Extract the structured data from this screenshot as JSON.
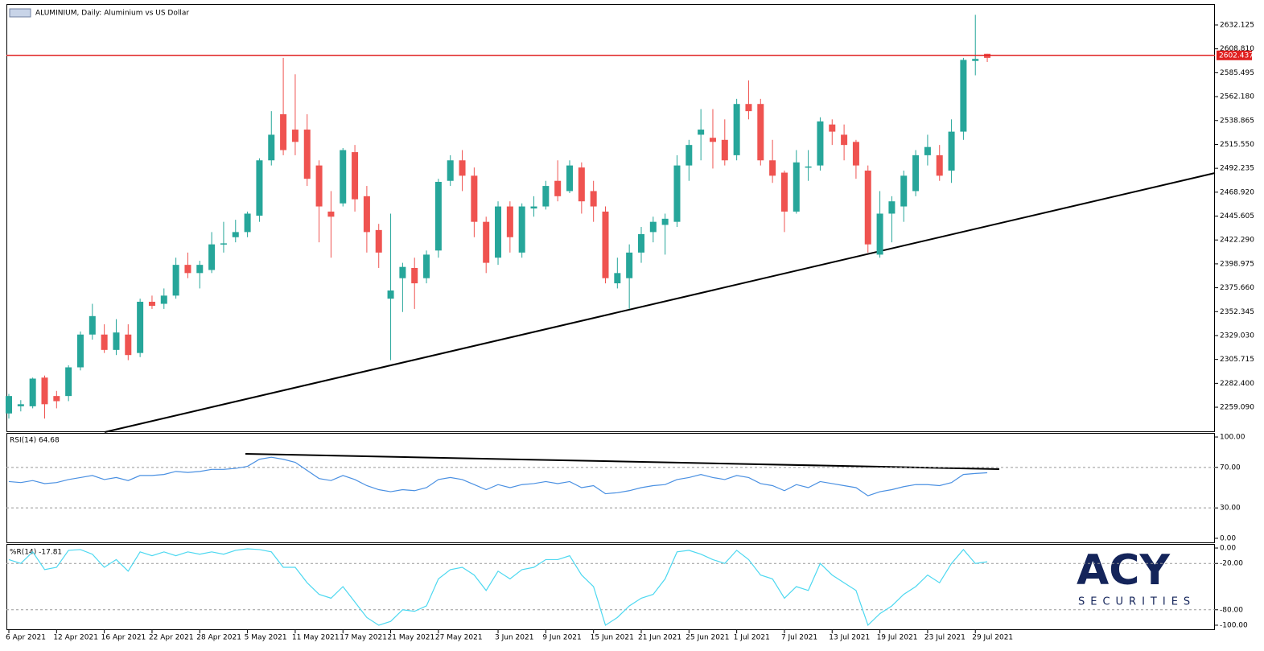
{
  "chart_data": [
    {
      "type": "candlestick",
      "title": "ALUMINIUM, Daily:  Aluminium vs US Dollar",
      "categories": [
        "6 Apr 2021",
        null,
        null,
        null,
        "12 Apr 2021",
        null,
        null,
        null,
        "16 Apr 2021",
        null,
        null,
        null,
        "22 Apr 2021",
        null,
        null,
        null,
        "28 Apr 2021",
        null,
        null,
        null,
        "5 May 2021",
        null,
        null,
        null,
        "11 May 2021",
        null,
        null,
        null,
        "17 May 2021",
        null,
        null,
        null,
        "21 May 2021",
        null,
        null,
        null,
        "27 May 2021",
        null,
        null,
        null,
        null,
        "3 Jun 2021",
        null,
        null,
        null,
        "9 Jun 2021",
        null,
        null,
        null,
        "15 Jun 2021",
        null,
        null,
        null,
        "21 Jun 2021",
        null,
        null,
        null,
        "25 Jun 2021",
        null,
        null,
        null,
        "1 Jul 2021",
        null,
        null,
        null,
        "7 Jul 2021",
        null,
        null,
        null,
        "13 Jul 2021",
        null,
        null,
        null,
        "19 Jul 2021",
        null,
        null,
        null,
        "23 Jul 2021",
        null,
        null,
        null,
        "29 Jul 2021",
        null
      ],
      "open": [
        2253,
        2260,
        2260,
        2288,
        2270,
        2270,
        2298,
        2330,
        2330,
        2315,
        2330,
        2312,
        2362,
        2360,
        2368,
        2398,
        2390,
        2393,
        2418,
        2425,
        2430,
        2446,
        2500,
        2545,
        2530,
        2530,
        2495,
        2450,
        2458,
        2508,
        2465,
        2432,
        2365,
        2385,
        2395,
        2385,
        2412,
        2480,
        2500,
        2485,
        2440,
        2405,
        2455,
        2410,
        2453,
        2455,
        2480,
        2470,
        2493,
        2470,
        2450,
        2380,
        2385,
        2410,
        2430,
        2437,
        2440,
        2495,
        2525,
        2522,
        2520,
        2505,
        2555,
        2555,
        2500,
        2488,
        2450,
        2493,
        2495,
        2535,
        2525,
        2518,
        2490,
        2408,
        2448,
        2455,
        2470,
        2505,
        2505,
        2490,
        2528,
        2597,
        2604
      ],
      "high": [
        2272,
        2266,
        2288,
        2290,
        2275,
        2300,
        2333,
        2360,
        2340,
        2345,
        2340,
        2365,
        2368,
        2375,
        2405,
        2410,
        2402,
        2430,
        2440,
        2442,
        2450,
        2502,
        2548,
        2600,
        2584,
        2545,
        2500,
        2470,
        2512,
        2515,
        2475,
        2438,
        2448,
        2400,
        2405,
        2412,
        2482,
        2505,
        2510,
        2493,
        2445,
        2460,
        2460,
        2458,
        2465,
        2480,
        2500,
        2500,
        2498,
        2480,
        2455,
        2405,
        2418,
        2435,
        2445,
        2448,
        2505,
        2520,
        2550,
        2550,
        2540,
        2560,
        2578,
        2560,
        2520,
        2490,
        2510,
        2510,
        2542,
        2540,
        2535,
        2520,
        2495,
        2470,
        2465,
        2490,
        2510,
        2525,
        2515,
        2540,
        2600,
        2642,
        2604
      ],
      "low": [
        2248,
        2255,
        2258,
        2248,
        2258,
        2265,
        2295,
        2325,
        2312,
        2310,
        2305,
        2308,
        2355,
        2355,
        2365,
        2385,
        2375,
        2390,
        2410,
        2420,
        2425,
        2440,
        2495,
        2505,
        2505,
        2475,
        2420,
        2405,
        2455,
        2450,
        2410,
        2395,
        2305,
        2352,
        2355,
        2380,
        2405,
        2475,
        2470,
        2425,
        2390,
        2398,
        2410,
        2405,
        2445,
        2452,
        2460,
        2468,
        2448,
        2440,
        2380,
        2375,
        2355,
        2400,
        2420,
        2408,
        2435,
        2480,
        2500,
        2492,
        2495,
        2500,
        2540,
        2495,
        2478,
        2430,
        2448,
        2480,
        2490,
        2515,
        2500,
        2482,
        2410,
        2405,
        2420,
        2440,
        2465,
        2495,
        2480,
        2478,
        2520,
        2583,
        2596
      ],
      "close": [
        2270,
        2262,
        2287,
        2262,
        2265,
        2298,
        2330,
        2348,
        2315,
        2332,
        2310,
        2362,
        2358,
        2368,
        2398,
        2390,
        2398,
        2418,
        2419,
        2430,
        2448,
        2500,
        2525,
        2510,
        2518,
        2482,
        2455,
        2445,
        2510,
        2462,
        2430,
        2410,
        2373,
        2396,
        2380,
        2408,
        2479,
        2500,
        2485,
        2440,
        2400,
        2455,
        2425,
        2455,
        2455,
        2475,
        2465,
        2495,
        2460,
        2455,
        2385,
        2390,
        2410,
        2428,
        2440,
        2443,
        2495,
        2515,
        2530,
        2518,
        2500,
        2555,
        2548,
        2500,
        2485,
        2450,
        2498,
        2494,
        2538,
        2528,
        2515,
        2495,
        2418,
        2448,
        2460,
        2485,
        2505,
        2513,
        2485,
        2528,
        2598,
        2599,
        2600
      ],
      "up_color": "#26a69a",
      "down_color": "#ef5350",
      "ylim": [
        2234.78,
        2652.54
      ],
      "yticks": [
        {
          "value": 2632.125,
          "label": "2632.125"
        },
        {
          "value": 2608.81,
          "label": "2608.810"
        },
        {
          "value": 2585.495,
          "label": "2585.495"
        },
        {
          "value": 2562.18,
          "label": "2562.180"
        },
        {
          "value": 2538.865,
          "label": "2538.865"
        },
        {
          "value": 2515.55,
          "label": "2515.550"
        },
        {
          "value": 2492.235,
          "label": "2492.235"
        },
        {
          "value": 2468.92,
          "label": "2468.920"
        },
        {
          "value": 2445.605,
          "label": "2445.605"
        },
        {
          "value": 2422.29,
          "label": "2422.290"
        },
        {
          "value": 2398.975,
          "label": "2398.975"
        },
        {
          "value": 2375.66,
          "label": "2375.660"
        },
        {
          "value": 2352.345,
          "label": "2352.345"
        },
        {
          "value": 2329.03,
          "label": "2329.030"
        },
        {
          "value": 2305.715,
          "label": "2305.715"
        },
        {
          "value": 2282.4,
          "label": "2282.400"
        },
        {
          "value": 2259.09,
          "label": "2259.090"
        }
      ],
      "current_price": {
        "value": 2602.437,
        "label": "2602.437"
      },
      "price_line_color": "#e02020"
    },
    {
      "type": "line",
      "title": "RSI(14) 64.68",
      "color": "#4a90e2",
      "values": [
        56,
        55,
        57,
        54,
        55,
        58,
        60,
        62,
        58,
        60,
        57,
        62,
        62,
        63,
        66,
        65,
        66,
        68,
        68,
        69,
        71,
        78,
        80,
        78,
        75,
        67,
        59,
        57,
        62,
        58,
        52,
        48,
        46,
        48,
        47,
        50,
        58,
        60,
        58,
        53,
        48,
        53,
        50,
        53,
        54,
        56,
        54,
        56,
        50,
        52,
        44,
        45,
        47,
        50,
        52,
        53,
        58,
        60,
        63,
        60,
        58,
        62,
        60,
        54,
        52,
        47,
        53,
        50,
        56,
        54,
        52,
        50,
        42,
        46,
        48,
        51,
        53,
        53,
        52,
        55,
        63,
        64,
        64.68
      ],
      "ylim": [
        -4.8,
        104
      ],
      "yticks": [
        {
          "value": 100,
          "label": "100.00"
        },
        {
          "value": 70,
          "label": "70.00"
        },
        {
          "value": 30,
          "label": "30.00"
        },
        {
          "value": 0,
          "label": "0.00"
        }
      ]
    },
    {
      "type": "line",
      "title": "%R(14) -17.81",
      "color": "#4dd8f0",
      "values": [
        -15,
        -20,
        -5,
        -28,
        -25,
        -3,
        -2,
        -8,
        -25,
        -15,
        -30,
        -5,
        -10,
        -5,
        -10,
        -5,
        -8,
        -5,
        -8,
        -3,
        -1,
        -2,
        -5,
        -25,
        -25,
        -45,
        -60,
        -65,
        -50,
        -70,
        -90,
        -100,
        -95,
        -80,
        -82,
        -75,
        -40,
        -28,
        -25,
        -35,
        -55,
        -30,
        -40,
        -28,
        -25,
        -15,
        -15,
        -10,
        -35,
        -50,
        -100,
        -90,
        -75,
        -65,
        -60,
        -40,
        -5,
        -3,
        -8,
        -15,
        -20,
        -3,
        -15,
        -35,
        -40,
        -65,
        -50,
        -55,
        -20,
        -35,
        -45,
        -55,
        -100,
        -85,
        -75,
        -60,
        -50,
        -35,
        -45,
        -20,
        -2,
        -20,
        -17.81
      ],
      "ylim": [
        -106.3,
        4.2
      ],
      "yticks": [
        {
          "value": 0,
          "label": "0.00"
        },
        {
          "value": -20,
          "label": "-20.00"
        },
        {
          "value": -80,
          "label": "-80.00"
        },
        {
          "value": -100,
          "label": "-100.00"
        }
      ]
    }
  ],
  "logo": {
    "name": "ACY",
    "tagline": "SECURITIES"
  }
}
